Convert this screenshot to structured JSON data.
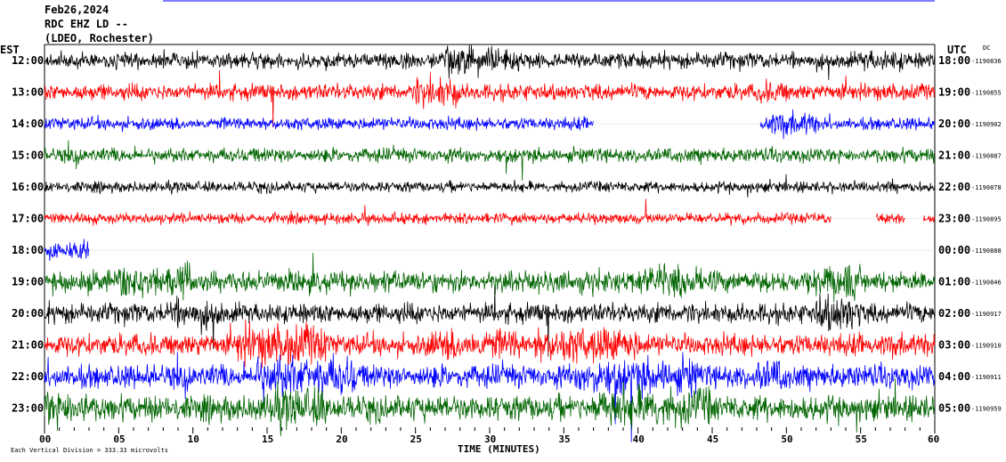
{
  "chart_data": {
    "type": "line",
    "title_lines": [
      "Feb26,2024",
      "RDC EHZ LD --",
      "(LDEO, Rochester)"
    ],
    "left_label": "EST",
    "right_label": "UTC",
    "dc_label": "DC",
    "xlabel": "TIME (MINUTES)",
    "x_range": [
      0,
      60
    ],
    "x_ticks": [
      "00",
      "05",
      "10",
      "15",
      "20",
      "25",
      "30",
      "35",
      "40",
      "45",
      "50",
      "55",
      "60"
    ],
    "footer": "Each Vertical Division =  333.33 microvolts",
    "colors": [
      "#000000",
      "#ff0000",
      "#0000ff",
      "#006400"
    ],
    "traces": [
      {
        "est": "12:00",
        "utc": "18:00",
        "dc": "-1190836",
        "color": "#000000",
        "amp": 0.45,
        "noise": [
          [
            27,
            32,
            1.6
          ],
          [
            55,
            58,
            1.3
          ]
        ]
      },
      {
        "est": "13:00",
        "utc": "19:00",
        "dc": "-1190855",
        "color": "#ff0000",
        "amp": 0.45,
        "noise": [
          [
            25,
            28,
            2.0
          ],
          [
            48,
            50,
            1.4
          ]
        ]
      },
      {
        "est": "14:00",
        "utc": "20:00",
        "dc": "-1190902",
        "color": "#0000ff",
        "amp": 0.35,
        "gaps": [
          [
            37,
            48.2
          ]
        ],
        "noise": [
          [
            48.5,
            52,
            1.8
          ]
        ]
      },
      {
        "est": "15:00",
        "utc": "21:00",
        "dc": "-1190887",
        "color": "#006400",
        "amp": 0.4
      },
      {
        "est": "16:00",
        "utc": "22:00",
        "dc": "-1190878",
        "color": "#000000",
        "amp": 0.3
      },
      {
        "est": "17:00",
        "utc": "23:00",
        "dc": "-1190895",
        "color": "#ff0000",
        "amp": 0.3,
        "gaps": [
          [
            53,
            56
          ],
          [
            58,
            59.2
          ]
        ]
      },
      {
        "est": "18:00",
        "utc": "00:00",
        "dc": "-1190888",
        "color": "#0000ff",
        "amp": 0.5,
        "gaps": [
          [
            3,
            60
          ]
        ]
      },
      {
        "est": "19:00",
        "utc": "01:00",
        "dc": "-1190846",
        "color": "#006400",
        "amp": 0.6,
        "noise": [
          [
            5,
            10,
            1.6
          ],
          [
            40,
            44,
            1.5
          ],
          [
            52,
            55,
            1.6
          ]
        ]
      },
      {
        "est": "20:00",
        "utc": "02:00",
        "dc": "-1190917",
        "color": "#000000",
        "amp": 0.55,
        "noise": [
          [
            8,
            12,
            1.5
          ],
          [
            52,
            55,
            1.9
          ]
        ]
      },
      {
        "est": "21:00",
        "utc": "03:00",
        "dc": "-1190910",
        "color": "#ff0000",
        "amp": 0.6,
        "noise": [
          [
            13,
            19,
            1.9
          ],
          [
            26,
            32,
            1.5
          ],
          [
            33,
            40,
            1.7
          ]
        ]
      },
      {
        "est": "22:00",
        "utc": "04:00",
        "dc": "-1190911",
        "color": "#0000ff",
        "amp": 0.65,
        "noise": [
          [
            14,
            21,
            1.8
          ],
          [
            36,
            44,
            1.6
          ],
          [
            48,
            50,
            1.5
          ]
        ]
      },
      {
        "est": "23:00",
        "utc": "05:00",
        "dc": "-1190959",
        "color": "#006400",
        "amp": 0.7,
        "noise": [
          [
            0,
            3,
            1.5
          ],
          [
            15,
            19,
            1.6
          ],
          [
            37,
            45,
            1.6
          ]
        ]
      }
    ]
  }
}
